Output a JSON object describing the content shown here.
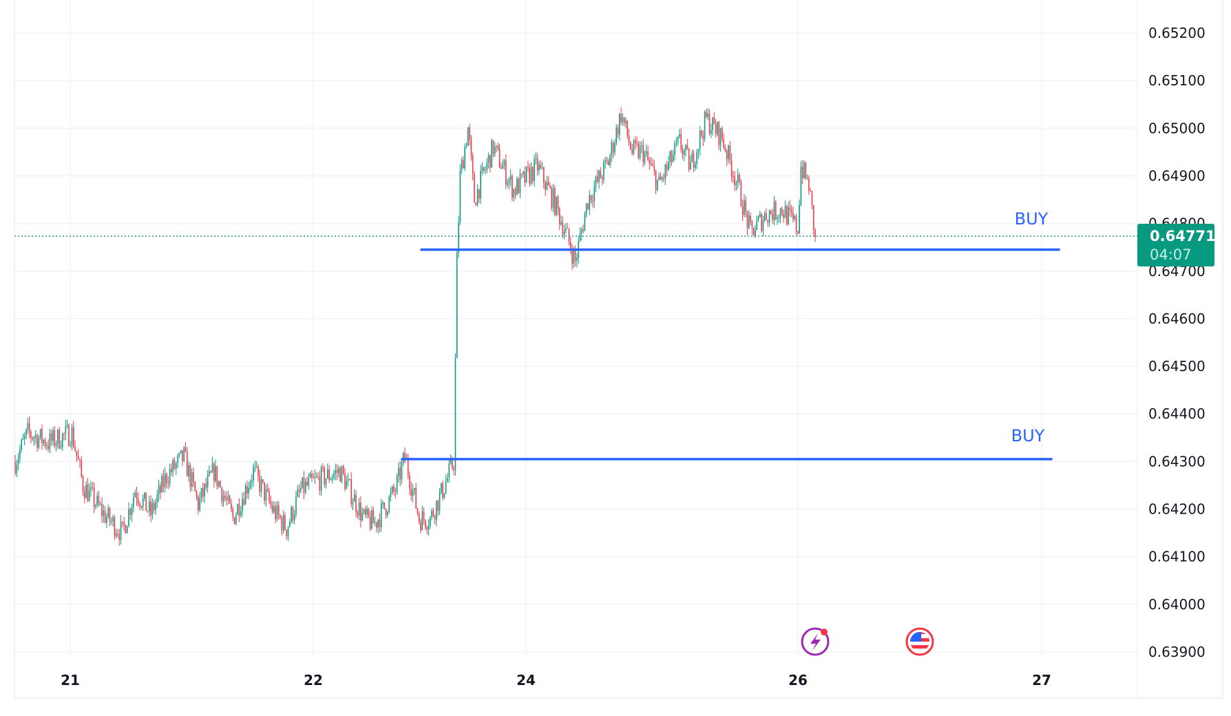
{
  "chart_data": {
    "type": "candlestick",
    "title": "",
    "y_ticks": [
      "0.65200",
      "0.65100",
      "0.65000",
      "0.64900",
      "0.64800",
      "0.64700",
      "0.64600",
      "0.64500",
      "0.64400",
      "0.64300",
      "0.64200",
      "0.64100",
      "0.64000",
      "0.63900"
    ],
    "ylim": [
      0.6388,
      0.6527
    ],
    "x_ticks": [
      "21",
      "22",
      "24",
      "26",
      "27"
    ],
    "current_price": "0.64771",
    "countdown": "04:07",
    "price_path": [
      [
        0,
        0.643
      ],
      [
        8,
        0.6436
      ],
      [
        21,
        0.6434
      ],
      [
        36,
        0.6436
      ],
      [
        43,
        0.6425
      ],
      [
        56,
        0.6419
      ],
      [
        68,
        0.6415
      ],
      [
        76,
        0.6424
      ],
      [
        86,
        0.6419
      ],
      [
        96,
        0.6427
      ],
      [
        107,
        0.6431
      ],
      [
        116,
        0.6421
      ],
      [
        126,
        0.6428
      ],
      [
        138,
        0.6418
      ],
      [
        151,
        0.6428
      ],
      [
        163,
        0.642
      ],
      [
        172,
        0.6416
      ],
      [
        181,
        0.6424
      ],
      [
        191,
        0.6426
      ],
      [
        206,
        0.6428
      ],
      [
        221,
        0.6418
      ],
      [
        228,
        0.6417
      ],
      [
        241,
        0.6424
      ],
      [
        247,
        0.6431
      ],
      [
        256,
        0.6418
      ],
      [
        263,
        0.6418
      ],
      [
        271,
        0.6424
      ],
      [
        278,
        0.643
      ],
      [
        280,
        0.6472
      ],
      [
        282,
        0.649
      ],
      [
        287,
        0.65
      ],
      [
        291,
        0.6485
      ],
      [
        303,
        0.6496
      ],
      [
        316,
        0.6487
      ],
      [
        331,
        0.6492
      ],
      [
        341,
        0.6485
      ],
      [
        348,
        0.6479
      ],
      [
        355,
        0.6472
      ],
      [
        363,
        0.6485
      ],
      [
        376,
        0.6493
      ],
      [
        384,
        0.6503
      ],
      [
        391,
        0.6495
      ],
      [
        398,
        0.6495
      ],
      [
        408,
        0.6488
      ],
      [
        421,
        0.6497
      ],
      [
        428,
        0.6492
      ],
      [
        438,
        0.6502
      ],
      [
        448,
        0.6498
      ],
      [
        458,
        0.6488
      ],
      [
        466,
        0.6478
      ],
      [
        476,
        0.6482
      ],
      [
        486,
        0.6483
      ],
      [
        496,
        0.6479
      ],
      [
        498,
        0.6492
      ],
      [
        503,
        0.6488
      ],
      [
        507,
        0.64771
      ]
    ],
    "horizontal_lines": [
      {
        "label": "BUY",
        "price": 0.64745,
        "color": "#2962ff"
      },
      {
        "label": "BUY",
        "price": 0.64305,
        "color": "#2962ff"
      }
    ],
    "colors": {
      "up": "#089981",
      "down": "#f23645",
      "grid": "#f0f3fa"
    }
  },
  "events": [
    {
      "icon": "lightning-event-icon"
    },
    {
      "icon": "us-flag-icon"
    }
  ]
}
